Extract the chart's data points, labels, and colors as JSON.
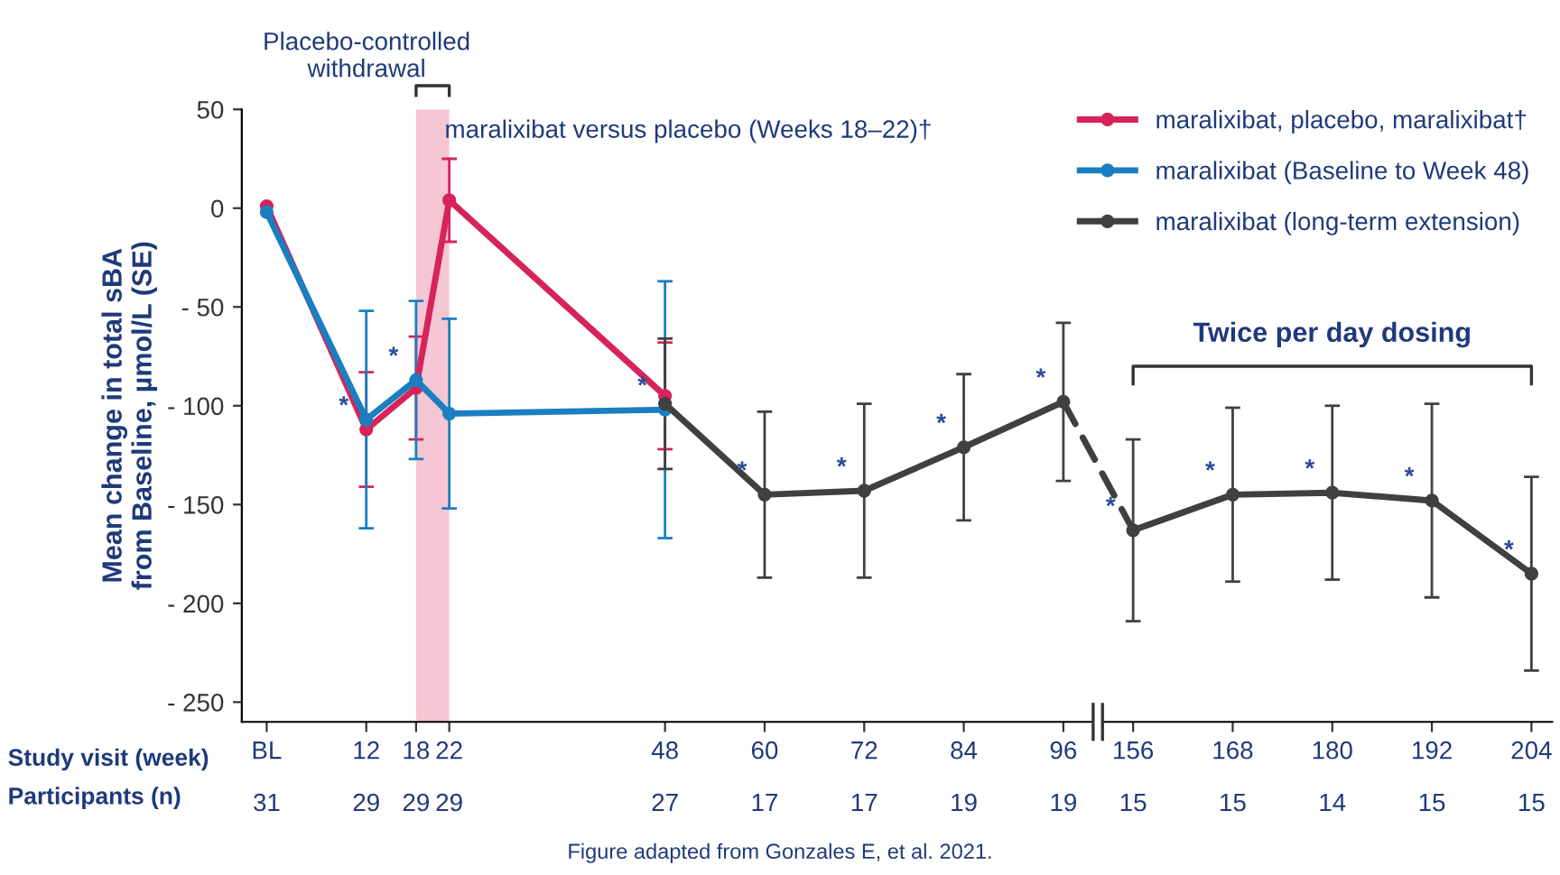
{
  "chart_data": [
    {
      "type": "line",
      "ylabel": "Mean change in total sBA\nfrom Baseline, µmol/L (SE)",
      "xlim": [
        -3,
        99.4
      ],
      "ylim": [
        -260,
        50
      ],
      "xticks": [
        {
          "value": 0,
          "label": "BL"
        },
        12,
        18,
        22,
        48,
        60,
        72,
        84,
        96
      ],
      "yticks": [
        50,
        0,
        {
          "value": -50,
          "label": "- 50"
        },
        {
          "value": -100,
          "label": "- 100"
        },
        {
          "value": -150,
          "label": "- 150"
        },
        {
          "value": -200,
          "label": "- 200"
        },
        {
          "value": -250,
          "label": "- 250"
        }
      ],
      "series": [
        {
          "name": "maralixibat, placebo, maralixibat†",
          "color": "#d6245a",
          "x": [
            0,
            12,
            18,
            22,
            48
          ],
          "values": [
            1,
            -112,
            -91,
            4,
            -95
          ],
          "errors": [
            null,
            29,
            26,
            21,
            27
          ]
        },
        {
          "name": "maralixibat (Baseline to Week 48)",
          "color": "#1a7fc1",
          "x": [
            0,
            12,
            18,
            22,
            48
          ],
          "values": [
            -2,
            -107,
            -87,
            -104,
            -102
          ],
          "errors": [
            null,
            55,
            40,
            48,
            65
          ]
        },
        {
          "name": "maralixibat (long-term extension)",
          "color": "#404040",
          "x": [
            48,
            60,
            72,
            84,
            96
          ],
          "values": [
            -99,
            -145,
            -143,
            -121,
            -98
          ],
          "errors": [
            33,
            42,
            44,
            37,
            40
          ]
        }
      ],
      "marker": "circle",
      "bands": [
        {
          "axis": "x",
          "from": 18,
          "to": 22,
          "color": "#f5c6d3"
        }
      ],
      "legend": "top right",
      "grid": false,
      "annotations": [
        "Placebo-controlled\nwithdrawal",
        "maralixibat versus placebo (Weeks 18–22)†",
        "Study visit (week)",
        "Participants (n)",
        "Figure adapted from Gonzales E, et al. 2021.",
        "31",
        "29",
        "29",
        "29",
        "27",
        "17",
        "17",
        "19",
        "19",
        {
          "text": "*",
          "x": 12,
          "y": -112
        },
        {
          "text": "*",
          "x": 18,
          "y": -87
        },
        {
          "text": "*",
          "x": 48,
          "y": -102
        },
        {
          "text": "*",
          "x": 60,
          "y": -145
        },
        {
          "text": "*",
          "x": 72,
          "y": -143
        },
        {
          "text": "*",
          "x": 84,
          "y": -121
        },
        {
          "text": "*",
          "x": 96,
          "y": -98
        }
      ]
    },
    {
      "type": "line",
      "xlim": [
        152.5,
        206.5
      ],
      "ylim": [
        -260,
        50
      ],
      "xticks": [
        156,
        168,
        180,
        192,
        204
      ],
      "yticks": [
        50,
        0,
        -50,
        -100,
        -150,
        -200,
        -250
      ],
      "tick_labels": "x",
      "series": [
        {
          "color": "#404040",
          "x": [
            156,
            168,
            180,
            192,
            204
          ],
          "values": [
            -163,
            -145,
            -144,
            -148,
            -185
          ],
          "errors": [
            46,
            44,
            44,
            49,
            49
          ]
        }
      ],
      "marker": "circle",
      "grid": false,
      "annotations": [
        "Twice per day dosing",
        "15",
        "15",
        "14",
        "15",
        "15",
        {
          "text": "*",
          "x": 156,
          "y": -163
        },
        {
          "text": "*",
          "x": 168,
          "y": -145
        },
        {
          "text": "*",
          "x": 180,
          "y": -144
        },
        {
          "text": "*",
          "x": 192,
          "y": -148
        },
        {
          "text": "*",
          "x": 204,
          "y": -185
        }
      ]
    }
  ]
}
